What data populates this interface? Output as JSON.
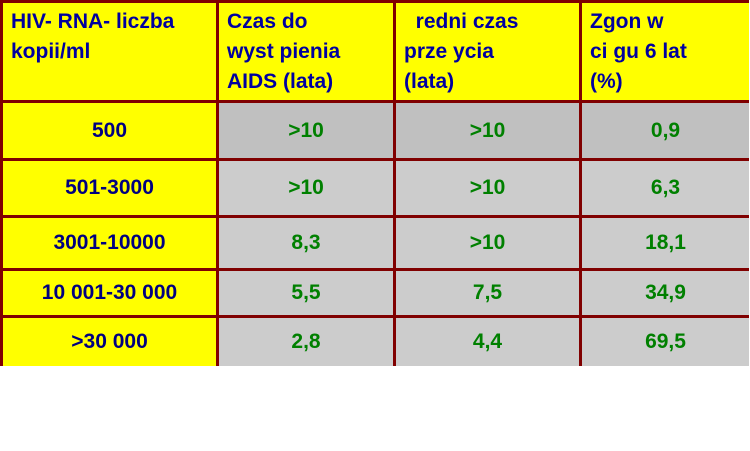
{
  "table": {
    "header": [
      [
        "HIV- RNA- liczba",
        "kopii/ml"
      ],
      [
        "Czas do",
        "wyst pienia",
        "AIDS (lata)"
      ],
      [
        "  redni czas",
        "prze ycia",
        "(lata)"
      ],
      [
        "Zgon w",
        "ci gu 6 lat",
        "(%)"
      ]
    ],
    "rows": [
      [
        "500",
        ">10",
        ">10",
        "0,9"
      ],
      [
        "501-3000",
        ">10",
        ">10",
        "6,3"
      ],
      [
        "3001-10000",
        "8,3",
        ">10",
        "18,1"
      ],
      [
        "10 001-30 000",
        "5,5",
        "7,5",
        "34,9"
      ],
      [
        ">30 000",
        "2,8",
        "4,4",
        "69,5"
      ]
    ]
  }
}
